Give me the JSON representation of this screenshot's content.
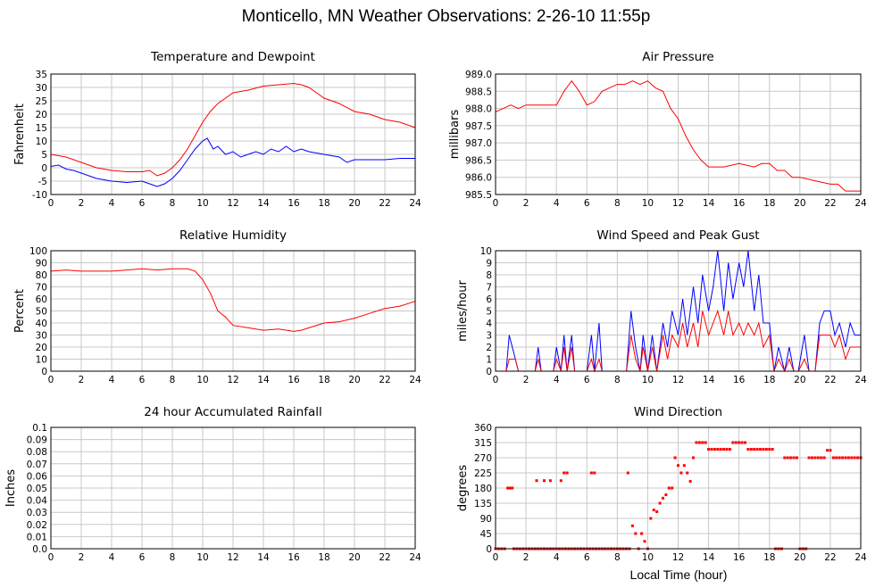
{
  "page": {
    "title": "Monticello, MN Weather Observations: 2-26-10 11:55p",
    "bottom_xlabel": "Local Time (hour)"
  },
  "colors": {
    "red": "#ff0000",
    "blue": "#0000ff",
    "grid": "#c8c8c8",
    "axis": "#000000"
  },
  "chart_data": [
    {
      "id": "temperature",
      "type": "line",
      "title": "Temperature and Dewpoint",
      "xlabel": "",
      "ylabel": "Fahrenheit",
      "xlim": [
        0,
        24
      ],
      "ylim": [
        -10,
        35
      ],
      "xticks": [
        0,
        2,
        4,
        6,
        8,
        10,
        12,
        14,
        16,
        18,
        20,
        22,
        24
      ],
      "yticks": [
        -10,
        -5,
        0,
        5,
        10,
        15,
        20,
        25,
        30,
        35
      ],
      "ytick_labels": [
        "-10",
        "-5",
        "0",
        "5",
        "10",
        "15",
        "20",
        "25",
        "30",
        "35"
      ],
      "grid": true,
      "series": [
        {
          "color": "#ff0000",
          "style": "line",
          "x": [
            0,
            1,
            2,
            3,
            4,
            5,
            6,
            6.5,
            7,
            7.5,
            8,
            8.5,
            9,
            9.5,
            10,
            10.5,
            11,
            11.5,
            12,
            13,
            14,
            15,
            16,
            16.5,
            17,
            17.5,
            18,
            19,
            20,
            21,
            22,
            23,
            24
          ],
          "y": [
            5,
            4,
            2,
            0,
            -1,
            -1.5,
            -1.5,
            -1,
            -3,
            -2,
            0,
            3,
            7,
            12,
            17,
            21,
            24,
            26,
            28,
            29,
            30.5,
            31,
            31.5,
            31,
            30,
            28,
            26,
            24,
            21,
            20,
            18,
            17,
            15
          ]
        },
        {
          "color": "#0000ff",
          "style": "line",
          "x": [
            0,
            0.5,
            1,
            1.5,
            2,
            3,
            4,
            5,
            6,
            6.5,
            7,
            7.5,
            8,
            8.5,
            9,
            9.5,
            10,
            10.3,
            10.7,
            11,
            11.5,
            12,
            12.5,
            13,
            13.5,
            14,
            14.5,
            15,
            15.5,
            16,
            16.5,
            17,
            18,
            19,
            19.5,
            20,
            21,
            22,
            23,
            24
          ],
          "y": [
            0.5,
            1,
            -0.5,
            -1,
            -2,
            -4,
            -5,
            -5.5,
            -5,
            -6,
            -7,
            -6,
            -4,
            -1,
            3,
            7,
            10,
            11,
            7,
            8,
            5,
            6,
            4,
            5,
            6,
            5,
            7,
            6,
            8,
            6,
            7,
            6,
            5,
            4,
            2,
            3,
            3,
            3,
            3.5,
            3.5
          ]
        }
      ]
    },
    {
      "id": "pressure",
      "type": "line",
      "title": "Air Pressure",
      "xlabel": "",
      "ylabel": "millibars",
      "xlim": [
        0,
        24
      ],
      "ylim": [
        985.5,
        989.0
      ],
      "xticks": [
        0,
        2,
        4,
        6,
        8,
        10,
        12,
        14,
        16,
        18,
        20,
        22,
        24
      ],
      "yticks": [
        985.5,
        986.0,
        986.5,
        987.0,
        987.5,
        988.0,
        988.5,
        989.0
      ],
      "ytick_labels": [
        "985.5",
        "986.0",
        "986.5",
        "987.0",
        "987.5",
        "988.0",
        "988.5",
        "989.0"
      ],
      "grid": true,
      "series": [
        {
          "color": "#ff0000",
          "style": "line",
          "x": [
            0,
            0.5,
            1,
            1.5,
            2,
            3,
            4,
            4.5,
            5,
            5.5,
            6,
            6.5,
            7,
            7.5,
            8,
            8.5,
            9,
            9.5,
            10,
            10.5,
            11,
            11.5,
            12,
            12.5,
            13,
            13.5,
            14,
            14.5,
            15,
            16,
            17,
            17.5,
            18,
            18.5,
            19,
            19.5,
            20,
            21,
            22,
            22.5,
            23,
            23.5,
            24
          ],
          "y": [
            987.9,
            988.0,
            988.1,
            988.0,
            988.1,
            988.1,
            988.1,
            988.5,
            988.8,
            988.5,
            988.1,
            988.2,
            988.5,
            988.6,
            988.7,
            988.7,
            988.8,
            988.7,
            988.8,
            988.6,
            988.5,
            988.0,
            987.7,
            987.2,
            986.8,
            986.5,
            986.3,
            986.3,
            986.3,
            986.4,
            986.3,
            986.4,
            986.4,
            986.2,
            986.2,
            986.0,
            986.0,
            985.9,
            985.8,
            985.8,
            985.6,
            985.6,
            985.6
          ]
        }
      ]
    },
    {
      "id": "humidity",
      "type": "line",
      "title": "Relative Humidity",
      "xlabel": "",
      "ylabel": "Percent",
      "xlim": [
        0,
        24
      ],
      "ylim": [
        0,
        100
      ],
      "xticks": [
        0,
        2,
        4,
        6,
        8,
        10,
        12,
        14,
        16,
        18,
        20,
        22,
        24
      ],
      "yticks": [
        0,
        10,
        20,
        30,
        40,
        50,
        60,
        70,
        80,
        90,
        100
      ],
      "ytick_labels": [
        "0",
        "10",
        "20",
        "30",
        "40",
        "50",
        "60",
        "70",
        "80",
        "90",
        "100"
      ],
      "grid": true,
      "series": [
        {
          "color": "#ff0000",
          "style": "line",
          "x": [
            0,
            1,
            2,
            3,
            4,
            5,
            6,
            7,
            8,
            9,
            9.5,
            10,
            10.5,
            11,
            11.5,
            12,
            13,
            14,
            15,
            16,
            16.5,
            17,
            18,
            19,
            20,
            21,
            22,
            23,
            24
          ],
          "y": [
            83,
            84,
            83,
            83,
            83,
            84,
            85,
            84,
            85,
            85,
            83,
            76,
            65,
            50,
            45,
            38,
            36,
            34,
            35,
            33,
            34,
            36,
            40,
            41,
            44,
            48,
            52,
            54,
            58
          ]
        }
      ]
    },
    {
      "id": "wind-speed",
      "type": "line",
      "title": "Wind Speed and Peak Gust",
      "xlabel": "",
      "ylabel": "miles/hour",
      "xlim": [
        0,
        24
      ],
      "ylim": [
        0,
        10
      ],
      "xticks": [
        0,
        2,
        4,
        6,
        8,
        10,
        12,
        14,
        16,
        18,
        20,
        22,
        24
      ],
      "yticks": [
        0,
        1,
        2,
        3,
        4,
        5,
        6,
        7,
        8,
        9,
        10
      ],
      "ytick_labels": [
        "0",
        "1",
        "2",
        "3",
        "4",
        "5",
        "6",
        "7",
        "8",
        "9",
        "10"
      ],
      "grid": true,
      "series": [
        {
          "color": "#0000ff",
          "style": "line",
          "x": [
            0,
            0.7,
            0.9,
            1.3,
            1.5,
            2.6,
            2.8,
            3.0,
            3.8,
            4.0,
            4.3,
            4.5,
            4.7,
            5.0,
            5.2,
            6.0,
            6.3,
            6.5,
            6.8,
            7.0,
            8.6,
            8.9,
            9.2,
            9.5,
            9.7,
            10.0,
            10.3,
            10.6,
            11.0,
            11.3,
            11.6,
            12.0,
            12.3,
            12.6,
            13.0,
            13.3,
            13.6,
            14.0,
            14.3,
            14.6,
            15.0,
            15.3,
            15.6,
            16.0,
            16.3,
            16.6,
            17.0,
            17.3,
            17.6,
            18.0,
            18.3,
            18.6,
            19.0,
            19.3,
            19.6,
            19.9,
            20.3,
            20.6,
            21.0,
            21.3,
            21.6,
            22.0,
            22.3,
            22.6,
            23.0,
            23.3,
            23.6,
            24.0
          ],
          "y": [
            0,
            0,
            3,
            1,
            0,
            0,
            2,
            0,
            0,
            2,
            0,
            3,
            0,
            3,
            0,
            0,
            3,
            0,
            4,
            0,
            0,
            5,
            2,
            0,
            3,
            0,
            3,
            0,
            4,
            2,
            5,
            3,
            6,
            3,
            7,
            4,
            8,
            5,
            7,
            10,
            5,
            9,
            6,
            9,
            7,
            10,
            5,
            8,
            4,
            4,
            0,
            2,
            0,
            2,
            0,
            0,
            3,
            0,
            0,
            4,
            5,
            5,
            3,
            4,
            2,
            4,
            3,
            3
          ]
        },
        {
          "color": "#ff0000",
          "style": "line",
          "x": [
            0,
            0.7,
            0.9,
            1.3,
            1.5,
            2.6,
            2.8,
            3.0,
            3.8,
            4.0,
            4.3,
            4.5,
            4.7,
            5.0,
            5.2,
            6.0,
            6.3,
            6.5,
            6.8,
            7.0,
            8.6,
            8.9,
            9.2,
            9.5,
            9.7,
            10.0,
            10.3,
            10.6,
            11.0,
            11.3,
            11.6,
            12.0,
            12.3,
            12.6,
            13.0,
            13.3,
            13.6,
            14.0,
            14.3,
            14.6,
            15.0,
            15.3,
            15.6,
            16.0,
            16.3,
            16.6,
            17.0,
            17.3,
            17.6,
            18.0,
            18.3,
            18.6,
            19.0,
            19.3,
            19.6,
            19.9,
            20.3,
            20.6,
            21.0,
            21.3,
            21.6,
            22.0,
            22.3,
            22.6,
            23.0,
            23.3,
            23.6,
            24.0
          ],
          "y": [
            0,
            0,
            1,
            1,
            0,
            0,
            1,
            0,
            0,
            1,
            0,
            2,
            0,
            2,
            0,
            0,
            1,
            0,
            1,
            0,
            0,
            3,
            1,
            0,
            2,
            0,
            2,
            0,
            3,
            1,
            3,
            2,
            4,
            2,
            4,
            2,
            5,
            3,
            4,
            5,
            3,
            5,
            3,
            4,
            3,
            4,
            3,
            4,
            2,
            3,
            0,
            1,
            0,
            1,
            0,
            0,
            1,
            0,
            0,
            3,
            3,
            3,
            2,
            3,
            1,
            2,
            2,
            2
          ]
        }
      ]
    },
    {
      "id": "rainfall",
      "type": "line",
      "title": "24 hour Accumulated Rainfall",
      "xlabel": "",
      "ylabel": "Inches",
      "xlim": [
        0,
        24
      ],
      "ylim": [
        0,
        0.1
      ],
      "xticks": [
        0,
        2,
        4,
        6,
        8,
        10,
        12,
        14,
        16,
        18,
        20,
        22,
        24
      ],
      "yticks": [
        0,
        0.01,
        0.02,
        0.03,
        0.04,
        0.05,
        0.06,
        0.07,
        0.08,
        0.09,
        0.1
      ],
      "ytick_labels": [
        "0.0",
        "0.01",
        "0.02",
        "0.03",
        "0.04",
        "0.05",
        "0.06",
        "0.07",
        "0.08",
        "0.09",
        "0.1"
      ],
      "grid": true,
      "series": [
        {
          "color": "#ff0000",
          "style": "line",
          "x": [
            0,
            24
          ],
          "y": [
            0,
            0
          ]
        }
      ]
    },
    {
      "id": "wind-direction",
      "type": "scatter",
      "title": "Wind Direction",
      "xlabel": "Local Time (hour)",
      "ylabel": "degrees",
      "xlim": [
        0,
        24
      ],
      "ylim": [
        0,
        360
      ],
      "xticks": [
        0,
        2,
        4,
        6,
        8,
        10,
        12,
        14,
        16,
        18,
        20,
        22,
        24
      ],
      "yticks": [
        0,
        45,
        90,
        135,
        180,
        225,
        270,
        315,
        360
      ],
      "ytick_labels": [
        "0",
        "45",
        "90",
        "135",
        "180",
        "225",
        "270",
        "315",
        "360"
      ],
      "grid": true,
      "series": [
        {
          "color": "#ff0000",
          "style": "points",
          "x": [
            0.0,
            0.2,
            0.4,
            0.6,
            0.8,
            0.9,
            1.0,
            1.1,
            1.2,
            1.4,
            1.6,
            1.8,
            2.0,
            2.2,
            2.4,
            2.6,
            2.8,
            3.0,
            3.2,
            3.4,
            3.6,
            3.8,
            4.0,
            4.2,
            4.4,
            4.6,
            4.8,
            5.0,
            5.2,
            5.4,
            5.6,
            5.8,
            6.0,
            6.2,
            6.4,
            6.6,
            6.8,
            7.0,
            7.2,
            7.4,
            7.6,
            7.8,
            8.0,
            8.2,
            8.4,
            8.6,
            8.8,
            9.0,
            9.2,
            9.4,
            9.6,
            9.8,
            10.0,
            10.2,
            10.4,
            10.6,
            10.8,
            11.0,
            11.2,
            11.4,
            11.6,
            11.8,
            12.0,
            12.2,
            12.4,
            12.6,
            12.8,
            13.0,
            13.2,
            13.4,
            13.6,
            13.8,
            14.0,
            14.2,
            14.4,
            14.6,
            14.8,
            15.0,
            15.2,
            15.4,
            15.6,
            15.8,
            16.0,
            16.2,
            16.4,
            16.6,
            16.8,
            17.0,
            17.2,
            17.4,
            17.6,
            17.8,
            18.0,
            18.2,
            18.4,
            18.6,
            18.8,
            19.0,
            19.2,
            19.4,
            19.6,
            19.8,
            20.0,
            20.2,
            20.4,
            20.6,
            20.8,
            21.0,
            21.2,
            21.4,
            21.6,
            21.8,
            22.0,
            22.2,
            22.4,
            22.6,
            22.8,
            23.0,
            23.2,
            23.4,
            23.6,
            23.8,
            24.0,
            2.7,
            3.2,
            3.6,
            4.3,
            4.5,
            4.7,
            6.3,
            6.5,
            8.7
          ],
          "y": [
            0,
            0,
            0,
            0,
            180,
            180,
            180,
            180,
            0,
            0,
            0,
            0,
            0,
            0,
            0,
            0,
            0,
            0,
            0,
            0,
            0,
            0,
            0,
            0,
            0,
            0,
            0,
            0,
            0,
            0,
            0,
            0,
            0,
            0,
            0,
            0,
            0,
            0,
            0,
            0,
            0,
            0,
            0,
            0,
            0,
            0,
            0,
            68,
            45,
            0,
            45,
            22,
            0,
            90,
            115,
            110,
            135,
            150,
            160,
            180,
            180,
            270,
            247,
            225,
            247,
            225,
            200,
            270,
            315,
            315,
            315,
            315,
            295,
            295,
            295,
            295,
            295,
            295,
            295,
            295,
            315,
            315,
            315,
            315,
            315,
            295,
            295,
            295,
            295,
            295,
            295,
            295,
            295,
            295,
            0,
            0,
            0,
            270,
            270,
            270,
            270,
            270,
            0,
            0,
            0,
            270,
            270,
            270,
            270,
            270,
            270,
            292,
            292,
            270,
            270,
            270,
            270,
            270,
            270,
            270,
            270,
            270,
            270,
            202,
            202,
            202,
            202,
            225,
            225,
            225,
            225,
            225
          ]
        }
      ]
    }
  ]
}
